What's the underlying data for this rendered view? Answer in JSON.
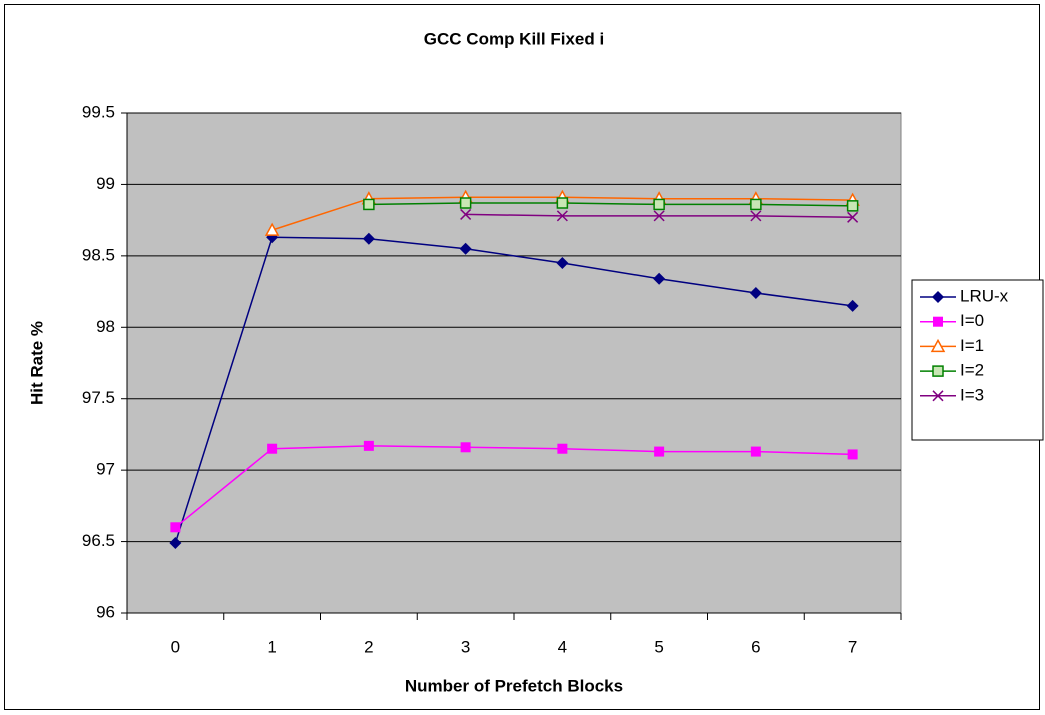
{
  "chart_data": {
    "type": "line",
    "title": "GCC Comp Kill Fixed i",
    "x_label": "Number of Prefetch Blocks",
    "y_label": "Hit Rate %",
    "categories": [
      "0",
      "1",
      "2",
      "3",
      "4",
      "5",
      "6",
      "7"
    ],
    "series": [
      {
        "name": "LRU-x",
        "color": "#000080",
        "marker": "diamond",
        "values": [
          96.49,
          98.63,
          98.62,
          98.55,
          98.45,
          98.34,
          98.24,
          98.15
        ]
      },
      {
        "name": "I=0",
        "color": "#ff00ff",
        "marker": "square",
        "values": [
          96.6,
          97.15,
          97.17,
          97.16,
          97.15,
          97.13,
          97.13,
          97.11
        ]
      },
      {
        "name": "I=1",
        "color": "#ff6600",
        "marker": "triangle-open",
        "values": [
          null,
          98.68,
          98.9,
          98.91,
          98.91,
          98.9,
          98.9,
          98.89
        ]
      },
      {
        "name": "I=2",
        "color": "#008000",
        "marker": "square-open",
        "values": [
          null,
          null,
          98.86,
          98.87,
          98.87,
          98.86,
          98.86,
          98.85
        ]
      },
      {
        "name": "I=3",
        "color": "#800080",
        "marker": "x",
        "values": [
          null,
          null,
          null,
          98.79,
          98.78,
          98.78,
          98.78,
          98.77
        ]
      }
    ],
    "ylim": [
      96,
      99.5
    ],
    "yticks": [
      96,
      {
        "value": 96.5,
        "label": "96.5"
      },
      97,
      {
        "value": 97.5,
        "label": "97.5"
      },
      98,
      {
        "value": 98.5,
        "label": "98.5"
      },
      99,
      {
        "value": 99.5,
        "label": "99.5"
      }
    ],
    "grid": true,
    "legend": "right",
    "plot_background": "#c0c0c0"
  }
}
